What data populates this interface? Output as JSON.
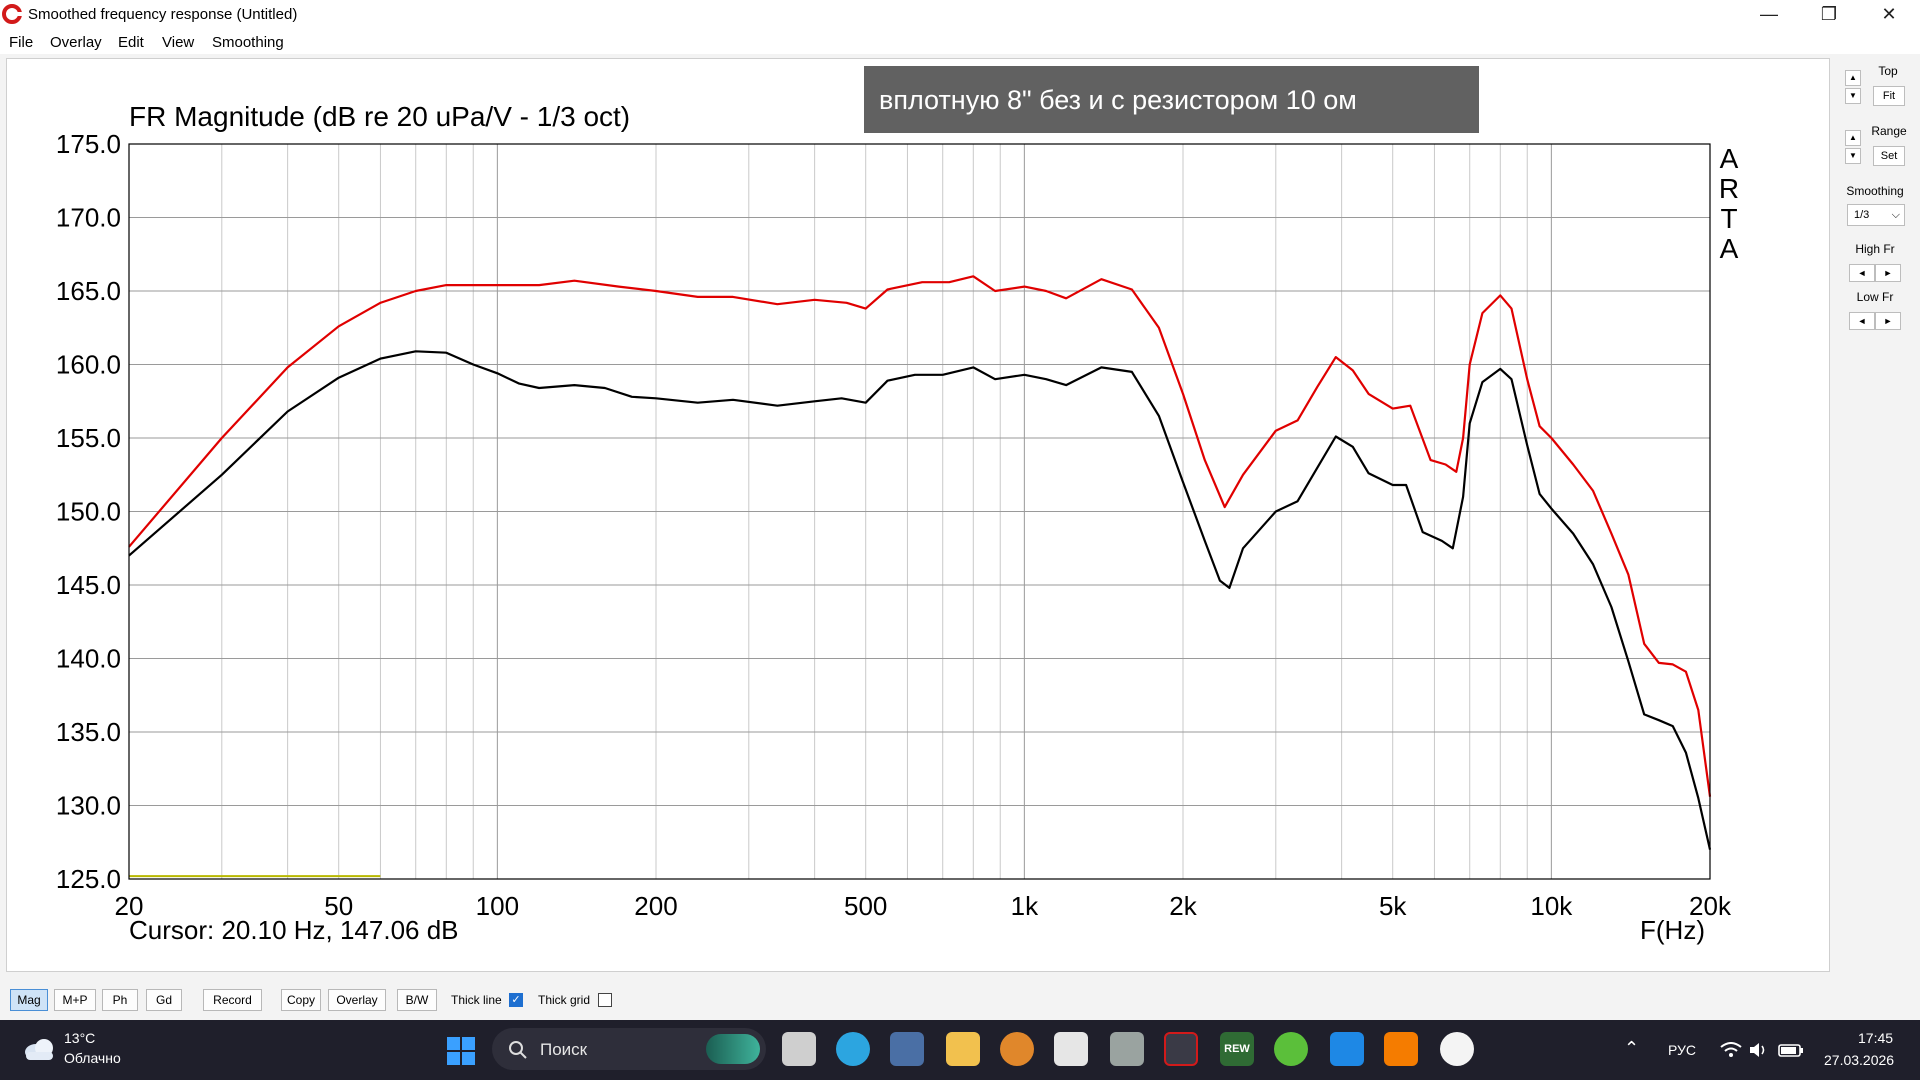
{
  "window": {
    "title": "Smoothed frequency response (Untitled)"
  },
  "menu": [
    "File",
    "Overlay",
    "Edit",
    "View",
    "Smoothing"
  ],
  "chart_data": {
    "type": "line",
    "title": "FR Magnitude (dB re 20 uPa/V - 1/3 oct)",
    "annotation": "вплотную 8\" без и с резистором 10 ом",
    "watermark": "ARTA",
    "xlabel": "F(Hz)",
    "x_scale": "log",
    "xlim": [
      20,
      20000
    ],
    "ylim": [
      125,
      175
    ],
    "grid": true,
    "y_ticks": [
      "175.0",
      "170.0",
      "165.0",
      "160.0",
      "155.0",
      "150.0",
      "145.0",
      "140.0",
      "135.0",
      "130.0",
      "125.0"
    ],
    "x_tick_values": [
      20,
      50,
      100,
      200,
      500,
      1000,
      2000,
      5000,
      10000,
      20000
    ],
    "x_tick_labels": [
      "20",
      "50",
      "100",
      "200",
      "500",
      "1k",
      "2k",
      "5k",
      "10k",
      "20k"
    ],
    "cursor_text": "Cursor: 20.10 Hz, 147.06 dB",
    "series": [
      {
        "color": "#e00000",
        "points": [
          [
            20,
            147.6
          ],
          [
            30,
            155
          ],
          [
            40,
            159.8
          ],
          [
            50,
            162.6
          ],
          [
            60,
            164.2
          ],
          [
            70,
            165
          ],
          [
            80,
            165.4
          ],
          [
            100,
            165.4
          ],
          [
            120,
            165.4
          ],
          [
            140,
            165.7
          ],
          [
            170,
            165.3
          ],
          [
            200,
            165
          ],
          [
            240,
            164.6
          ],
          [
            280,
            164.6
          ],
          [
            340,
            164.1
          ],
          [
            400,
            164.4
          ],
          [
            460,
            164.2
          ],
          [
            500,
            163.8
          ],
          [
            550,
            165.1
          ],
          [
            640,
            165.6
          ],
          [
            720,
            165.6
          ],
          [
            800,
            166
          ],
          [
            880,
            165
          ],
          [
            1000,
            165.3
          ],
          [
            1100,
            165
          ],
          [
            1200,
            164.5
          ],
          [
            1400,
            165.8
          ],
          [
            1600,
            165.1
          ],
          [
            1800,
            162.5
          ],
          [
            2000,
            158
          ],
          [
            2200,
            153.5
          ],
          [
            2400,
            150.3
          ],
          [
            2600,
            152.5
          ],
          [
            3000,
            155.5
          ],
          [
            3300,
            156.2
          ],
          [
            3600,
            158.5
          ],
          [
            3900,
            160.5
          ],
          [
            4200,
            159.6
          ],
          [
            4500,
            158
          ],
          [
            5000,
            157
          ],
          [
            5400,
            157.2
          ],
          [
            5900,
            153.5
          ],
          [
            6300,
            153.2
          ],
          [
            6600,
            152.7
          ],
          [
            6800,
            155
          ],
          [
            7000,
            160
          ],
          [
            7400,
            163.5
          ],
          [
            8000,
            164.7
          ],
          [
            8400,
            163.8
          ],
          [
            9000,
            159
          ],
          [
            9500,
            155.8
          ],
          [
            10000,
            155
          ],
          [
            11000,
            153.2
          ],
          [
            12000,
            151.4
          ],
          [
            13000,
            148.5
          ],
          [
            14000,
            145.7
          ],
          [
            15000,
            141
          ],
          [
            16000,
            139.7
          ],
          [
            17000,
            139.6
          ],
          [
            18000,
            139.1
          ],
          [
            19000,
            136.5
          ],
          [
            20000,
            130.6
          ]
        ]
      },
      {
        "color": "#000000",
        "points": [
          [
            20,
            147
          ],
          [
            30,
            152.5
          ],
          [
            40,
            156.8
          ],
          [
            50,
            159.1
          ],
          [
            60,
            160.4
          ],
          [
            70,
            160.9
          ],
          [
            80,
            160.8
          ],
          [
            90,
            160
          ],
          [
            100,
            159.4
          ],
          [
            110,
            158.7
          ],
          [
            120,
            158.4
          ],
          [
            140,
            158.6
          ],
          [
            160,
            158.4
          ],
          [
            180,
            157.8
          ],
          [
            200,
            157.7
          ],
          [
            240,
            157.4
          ],
          [
            280,
            157.6
          ],
          [
            340,
            157.2
          ],
          [
            400,
            157.5
          ],
          [
            450,
            157.7
          ],
          [
            500,
            157.4
          ],
          [
            550,
            158.9
          ],
          [
            620,
            159.3
          ],
          [
            700,
            159.3
          ],
          [
            800,
            159.8
          ],
          [
            880,
            159
          ],
          [
            1000,
            159.3
          ],
          [
            1100,
            159
          ],
          [
            1200,
            158.6
          ],
          [
            1400,
            159.8
          ],
          [
            1600,
            159.5
          ],
          [
            1800,
            156.5
          ],
          [
            2000,
            152
          ],
          [
            2200,
            148
          ],
          [
            2350,
            145.3
          ],
          [
            2450,
            144.8
          ],
          [
            2600,
            147.5
          ],
          [
            3000,
            150
          ],
          [
            3300,
            150.7
          ],
          [
            3600,
            153
          ],
          [
            3900,
            155.1
          ],
          [
            4200,
            154.4
          ],
          [
            4500,
            152.6
          ],
          [
            5000,
            151.8
          ],
          [
            5300,
            151.8
          ],
          [
            5700,
            148.6
          ],
          [
            6200,
            148
          ],
          [
            6500,
            147.5
          ],
          [
            6800,
            151
          ],
          [
            7000,
            156
          ],
          [
            7400,
            158.8
          ],
          [
            8000,
            159.7
          ],
          [
            8400,
            159
          ],
          [
            9000,
            154.5
          ],
          [
            9500,
            151.2
          ],
          [
            10000,
            150.2
          ],
          [
            11000,
            148.5
          ],
          [
            12000,
            146.4
          ],
          [
            13000,
            143.5
          ],
          [
            14000,
            139.8
          ],
          [
            15000,
            136.2
          ],
          [
            16000,
            135.8
          ],
          [
            17000,
            135.4
          ],
          [
            18000,
            133.6
          ],
          [
            19000,
            130.5
          ],
          [
            20000,
            127
          ]
        ]
      },
      {
        "color": "#b8b800",
        "points": [
          [
            20,
            125.2
          ],
          [
            60,
            125.2
          ]
        ]
      }
    ]
  },
  "right_panel": {
    "top_label": "Top",
    "fit": "Fit",
    "range_label": "Range",
    "set": "Set",
    "smoothing_label": "Smoothing",
    "smoothing_value": "1/3",
    "high_fr_label": "High Fr",
    "low_fr_label": "Low Fr",
    "up": "▲",
    "down": "▼",
    "left": "◄",
    "right": "►",
    "dd": "⌵"
  },
  "bottom": {
    "buttons": [
      "Mag",
      "M+P",
      "Ph",
      "Gd",
      "Record",
      "Copy",
      "Overlay",
      "B/W"
    ],
    "thick_line": "Thick line",
    "thick_grid": "Thick grid",
    "check": "✓"
  },
  "taskbar": {
    "temp": "13°C",
    "weather": "Облачно",
    "search": "Поиск",
    "lang": "РУС",
    "time": "17:45",
    "date": "27.03.2026",
    "win_min": "—",
    "win_max": "❐",
    "win_close": "✕",
    "chevron": "⌃",
    "rew": "REW"
  },
  "colors": {
    "red_series": "#e00000",
    "black_series": "#000000",
    "annotation_bg": "#616161",
    "grid": "#c6c6c6"
  }
}
